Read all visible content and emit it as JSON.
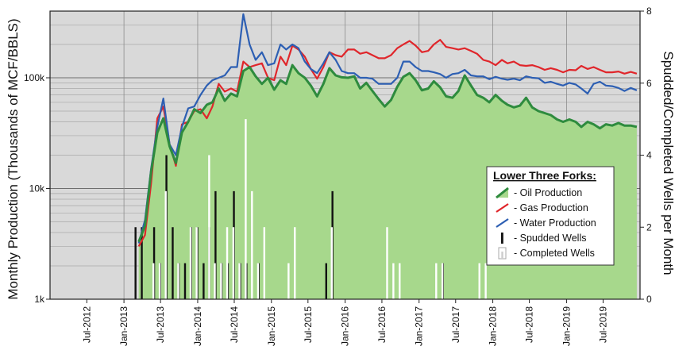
{
  "chart_data": {
    "type": "line",
    "title": "",
    "ylabel_left": "Monthly Production (Thousands of MCF/BBLS)",
    "ylabel_right": "Spudded/Completed Wells per Month",
    "y_left_scale": "log",
    "y_left_range": [
      1000,
      400000
    ],
    "y_left_ticks": [
      {
        "value": 1000,
        "label": "1k"
      },
      {
        "value": 10000,
        "label": "10k"
      },
      {
        "value": 100000,
        "label": "100k"
      }
    ],
    "y_right_range": [
      0,
      8
    ],
    "y_right_ticks": [
      "0",
      "2",
      "4",
      "6",
      "8"
    ],
    "x_ticks": [
      "Jul-2012",
      "Jan-2013",
      "Jul-2013",
      "Jan-2014",
      "Jul-2014",
      "Jan-2015",
      "Jul-2015",
      "Jan-2016",
      "Jul-2016",
      "Jan-2017",
      "Jul-2017",
      "Jan-2018",
      "Jul-2018",
      "Jan-2019",
      "Jul-2019"
    ],
    "months": [
      "2013-03",
      "2013-04",
      "2013-05",
      "2013-06",
      "2013-07",
      "2013-08",
      "2013-09",
      "2013-10",
      "2013-11",
      "2013-12",
      "2014-01",
      "2014-02",
      "2014-03",
      "2014-04",
      "2014-05",
      "2014-06",
      "2014-07",
      "2014-08",
      "2014-09",
      "2014-10",
      "2014-11",
      "2014-12",
      "2015-01",
      "2015-02",
      "2015-03",
      "2015-04",
      "2015-05",
      "2015-06",
      "2015-07",
      "2015-08",
      "2015-09",
      "2015-10",
      "2015-11",
      "2015-12",
      "2016-01",
      "2016-02",
      "2016-03",
      "2016-04",
      "2016-05",
      "2016-06",
      "2016-07",
      "2016-08",
      "2016-09",
      "2016-10",
      "2016-11",
      "2016-12",
      "2017-01",
      "2017-02",
      "2017-03",
      "2017-04",
      "2017-05",
      "2017-06",
      "2017-07",
      "2017-08",
      "2017-09",
      "2017-10",
      "2017-11",
      "2017-12",
      "2018-01",
      "2018-02",
      "2018-03",
      "2018-04",
      "2018-05",
      "2018-06",
      "2018-07",
      "2018-08",
      "2018-09",
      "2018-10",
      "2018-11",
      "2018-12",
      "2019-01",
      "2019-02",
      "2019-03",
      "2019-04",
      "2019-05",
      "2019-06",
      "2019-07",
      "2019-08",
      "2019-09",
      "2019-10",
      "2019-11",
      "2019-12"
    ],
    "series": [
      {
        "name": "Oil Production",
        "color": "#2e8b3e",
        "fill": "#a7d88c",
        "values": [
          3300,
          4600,
          14000,
          32000,
          43000,
          24000,
          17000,
          32000,
          40000,
          52000,
          48000,
          57000,
          60000,
          80000,
          62000,
          72000,
          68000,
          115000,
          125000,
          103000,
          88000,
          100000,
          78000,
          95000,
          88000,
          130000,
          110000,
          100000,
          85000,
          68000,
          88000,
          122000,
          105000,
          101000,
          100000,
          103000,
          80000,
          90000,
          76000,
          64000,
          55000,
          63000,
          83000,
          102000,
          110000,
          95000,
          77000,
          80000,
          93000,
          82000,
          68000,
          66000,
          76000,
          105000,
          85000,
          70000,
          66000,
          60000,
          70000,
          62000,
          57000,
          54000,
          56000,
          66000,
          54000,
          50000,
          48000,
          46000,
          42000,
          40000,
          42000,
          40000,
          36000,
          40000,
          38000,
          35000,
          38000,
          37000,
          39000,
          37000,
          37000,
          36000
        ]
      },
      {
        "name": "Gas Production",
        "color": "#e0262b",
        "values": [
          3000,
          3800,
          11000,
          43000,
          55000,
          25000,
          16000,
          38000,
          40000,
          50000,
          52000,
          43000,
          55000,
          88000,
          75000,
          80000,
          75000,
          140000,
          125000,
          130000,
          135000,
          100000,
          95000,
          155000,
          130000,
          195000,
          180000,
          155000,
          120000,
          98000,
          125000,
          170000,
          160000,
          155000,
          180000,
          180000,
          165000,
          170000,
          160000,
          150000,
          150000,
          160000,
          185000,
          200000,
          215000,
          195000,
          170000,
          175000,
          200000,
          220000,
          190000,
          185000,
          180000,
          185000,
          175000,
          165000,
          145000,
          140000,
          130000,
          145000,
          135000,
          140000,
          130000,
          128000,
          130000,
          125000,
          118000,
          122000,
          118000,
          112000,
          118000,
          117000,
          128000,
          120000,
          125000,
          118000,
          112000,
          112000,
          114000,
          109000,
          113000,
          109000
        ]
      },
      {
        "name": "Water Production",
        "color": "#2d5fb3",
        "values": [
          3200,
          5200,
          15000,
          36000,
          65000,
          25000,
          20000,
          36000,
          53000,
          55000,
          70000,
          85000,
          95000,
          100000,
          105000,
          125000,
          125000,
          375000,
          200000,
          145000,
          170000,
          130000,
          135000,
          200000,
          180000,
          200000,
          185000,
          140000,
          120000,
          110000,
          135000,
          170000,
          145000,
          115000,
          110000,
          110000,
          100000,
          100000,
          98000,
          88000,
          88000,
          88000,
          100000,
          140000,
          140000,
          125000,
          115000,
          115000,
          112000,
          108000,
          100000,
          108000,
          110000,
          118000,
          105000,
          103000,
          103000,
          97000,
          102000,
          98000,
          96000,
          98000,
          95000,
          103000,
          100000,
          99000,
          90000,
          92000,
          88000,
          85000,
          90000,
          87000,
          80000,
          72000,
          88000,
          92000,
          85000,
          84000,
          81000,
          76000,
          81000,
          77000
        ]
      },
      {
        "name": "Spudded Wells",
        "color": "#111111",
        "axis": "right",
        "values": [
          2,
          2,
          0,
          2,
          1,
          4,
          2,
          1,
          1,
          2,
          2,
          1,
          2,
          3,
          1,
          1,
          3,
          1,
          1,
          0,
          1,
          0,
          0,
          0,
          0,
          0,
          0,
          0,
          0,
          0,
          0,
          1,
          3,
          0,
          0,
          0,
          0,
          0,
          0,
          0,
          0,
          0,
          0,
          0,
          0,
          0,
          0,
          0,
          0,
          0,
          1,
          0,
          0,
          0,
          0,
          0,
          0,
          0,
          0,
          0,
          0,
          0,
          0,
          0,
          0,
          0,
          0,
          0,
          0,
          0,
          0,
          0,
          0,
          0,
          0,
          0,
          0,
          0,
          0,
          0,
          0,
          0
        ]
      },
      {
        "name": "Completed Wells",
        "color": "#ffffff",
        "axis": "right",
        "values": [
          0,
          0,
          1,
          1,
          3,
          0,
          1,
          0,
          2,
          2,
          0,
          4,
          1,
          1,
          2,
          2,
          1,
          5,
          3,
          1,
          2,
          0,
          0,
          0,
          1,
          2,
          0,
          0,
          0,
          0,
          0,
          2,
          0,
          0,
          0,
          0,
          0,
          0,
          0,
          0,
          2,
          1,
          1,
          0,
          0,
          0,
          0,
          0,
          1,
          1,
          0,
          0,
          0,
          0,
          0,
          1,
          1,
          0,
          0,
          0,
          0,
          0,
          0,
          0,
          0,
          0,
          0,
          0,
          0,
          0,
          0,
          0,
          0,
          0,
          0,
          0,
          0,
          0,
          0,
          0,
          0,
          0
        ]
      }
    ],
    "legend": {
      "title": "Lower Three Forks:",
      "position": "right",
      "items": [
        "- Oil Production",
        "- Gas Production",
        "- Water Production",
        "- Spudded Wells",
        "- Completed Wells"
      ]
    },
    "grid": true,
    "plot_background": "#d9d9d9"
  }
}
